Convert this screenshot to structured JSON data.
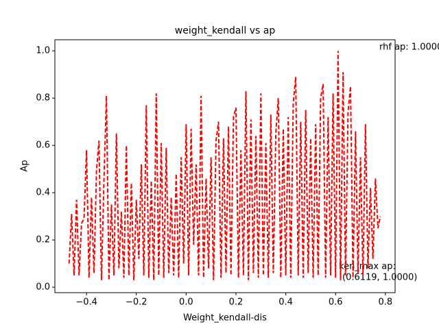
{
  "chart_data": {
    "type": "line",
    "title": "weight_kendall vs ap",
    "x_label": "Weight_kendall-dis",
    "y_label": "Ap",
    "x": [
      -0.47,
      -0.46,
      -0.45,
      -0.44,
      -0.43,
      -0.42,
      -0.41,
      -0.4,
      -0.39,
      -0.38,
      -0.37,
      -0.36,
      -0.35,
      -0.34,
      -0.33,
      -0.32,
      -0.31,
      -0.3,
      -0.29,
      -0.28,
      -0.27,
      -0.26,
      -0.25,
      -0.24,
      -0.23,
      -0.22,
      -0.21,
      -0.2,
      -0.19,
      -0.18,
      -0.17,
      -0.16,
      -0.15,
      -0.14,
      -0.13,
      -0.12,
      -0.11,
      -0.1,
      -0.09,
      -0.08,
      -0.07,
      -0.06,
      -0.05,
      -0.04,
      -0.03,
      -0.02,
      -0.01,
      0.0,
      0.01,
      0.02,
      0.03,
      0.04,
      0.05,
      0.06,
      0.07,
      0.08,
      0.09,
      0.1,
      0.11,
      0.12,
      0.13,
      0.14,
      0.15,
      0.16,
      0.17,
      0.18,
      0.19,
      0.2,
      0.21,
      0.22,
      0.23,
      0.24,
      0.25,
      0.26,
      0.27,
      0.28,
      0.29,
      0.3,
      0.31,
      0.32,
      0.33,
      0.34,
      0.35,
      0.36,
      0.37,
      0.38,
      0.39,
      0.4,
      0.41,
      0.42,
      0.43,
      0.44,
      0.45,
      0.46,
      0.47,
      0.48,
      0.49,
      0.5,
      0.51,
      0.52,
      0.53,
      0.54,
      0.55,
      0.56,
      0.57,
      0.58,
      0.59,
      0.6,
      0.61,
      0.62,
      0.63,
      0.64,
      0.65,
      0.66,
      0.67,
      0.68,
      0.69,
      0.7,
      0.71,
      0.72,
      0.73,
      0.74,
      0.75,
      0.76,
      0.77,
      0.78
    ],
    "series": [
      {
        "color": "#ff0000",
        "values": [
          0.1,
          0.31,
          0.05,
          0.37,
          0.05,
          0.27,
          0.29,
          0.58,
          0.04,
          0.38,
          0.06,
          0.49,
          0.62,
          0.03,
          0.45,
          0.81,
          0.03,
          0.35,
          0.05,
          0.65,
          0.08,
          0.32,
          0.04,
          0.6,
          0.05,
          0.44,
          0.03,
          0.37,
          0.12,
          0.52,
          0.05,
          0.77,
          0.04,
          0.45,
          0.03,
          0.82,
          0.05,
          0.61,
          0.04,
          0.59,
          0.06,
          0.38,
          0.05,
          0.48,
          0.04,
          0.55,
          0.1,
          0.69,
          0.05,
          0.67,
          0.18,
          0.52,
          0.05,
          0.81,
          0.04,
          0.46,
          0.08,
          0.55,
          0.03,
          0.62,
          0.7,
          0.04,
          0.63,
          0.06,
          0.68,
          0.05,
          0.72,
          0.76,
          0.04,
          0.58,
          0.05,
          0.83,
          0.03,
          0.71,
          0.06,
          0.64,
          0.04,
          0.82,
          0.05,
          0.61,
          0.04,
          0.73,
          0.06,
          0.65,
          0.8,
          0.04,
          0.67,
          0.05,
          0.72,
          0.04,
          0.78,
          0.89,
          0.05,
          0.7,
          0.04,
          0.75,
          0.06,
          0.63,
          0.04,
          0.69,
          0.05,
          0.8,
          0.86,
          0.04,
          0.72,
          0.05,
          0.82,
          0.04,
          1.0,
          0.03,
          0.91,
          0.05,
          0.74,
          0.85,
          0.04,
          0.66,
          0.06,
          0.55,
          0.05,
          0.69,
          0.08,
          0.42,
          0.12,
          0.46,
          0.25,
          0.3
        ]
      }
    ],
    "xlim": [
      -0.527,
      0.839
    ],
    "ylim": [
      -0.023,
      1.047
    ],
    "xticks": [
      {
        "value": -0.4,
        "label": "−0.4"
      },
      {
        "value": -0.2,
        "label": "−0.2"
      },
      {
        "value": 0,
        "label": "0.0"
      },
      0.2,
      0.4,
      0.6,
      0.8
    ],
    "yticks": [
      {
        "value": 0,
        "label": "0.0"
      },
      0.2,
      0.4,
      0.6,
      0.8,
      {
        "value": 1,
        "label": "1.0"
      }
    ],
    "annotations": [
      "rhf ap: 1.0000",
      "ken_max ap:",
      "(0.6119, 1.0000)"
    ]
  }
}
